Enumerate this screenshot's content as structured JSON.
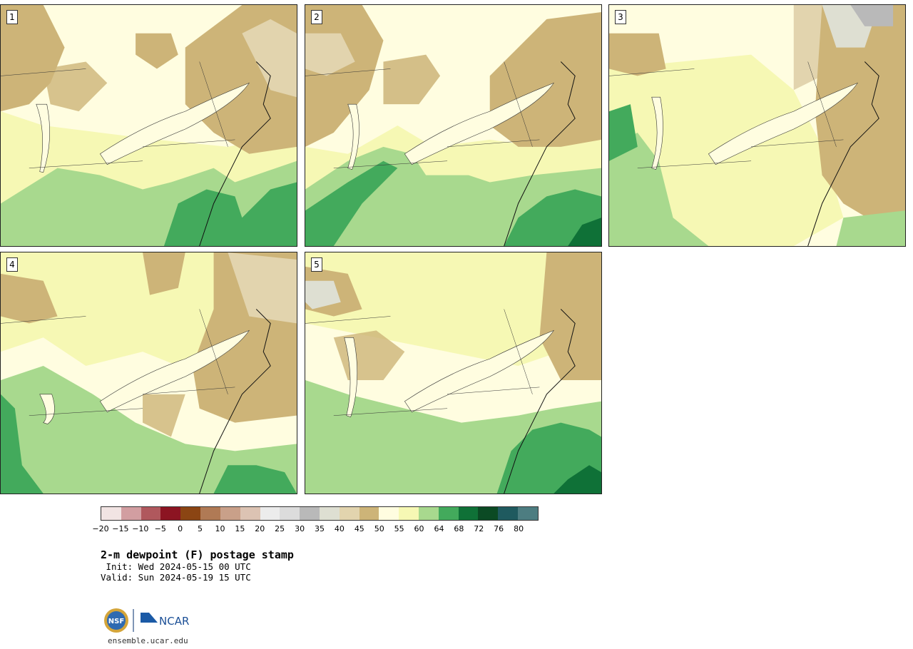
{
  "panels": [
    {
      "label": "1"
    },
    {
      "label": "2"
    },
    {
      "label": "3"
    },
    {
      "label": "4"
    },
    {
      "label": "5"
    }
  ],
  "legend": {
    "colors": [
      "#f1e4e3",
      "#d29ea1",
      "#b0585d",
      "#8c1422",
      "#8b4513",
      "#b07a55",
      "#c9a089",
      "#dcc3b3",
      "#ececec",
      "#dcdcdc",
      "#b9b9b9",
      "#dedfd2",
      "#e2d4ae",
      "#cdb478",
      "#fffde0",
      "#f6f8b4",
      "#a8d98e",
      "#43aa5c",
      "#0f7137",
      "#0b4a24",
      "#1f5a5f",
      "#4d7d81"
    ],
    "ticks": [
      "−20",
      "−15",
      "−10",
      "−5",
      "0",
      "5",
      "10",
      "15",
      "20",
      "25",
      "30",
      "35",
      "40",
      "45",
      "50",
      "55",
      "60",
      "64",
      "68",
      "72",
      "76",
      "80"
    ]
  },
  "title": "2-m dewpoint (F) postage stamp",
  "init": " Init: Wed 2024-05-15 00 UTC",
  "valid": "Valid: Sun 2024-05-19 15 UTC",
  "logo": {
    "nsf": "NSF",
    "ncar": "NCAR"
  },
  "footer_url": "ensemble.ucar.edu"
}
